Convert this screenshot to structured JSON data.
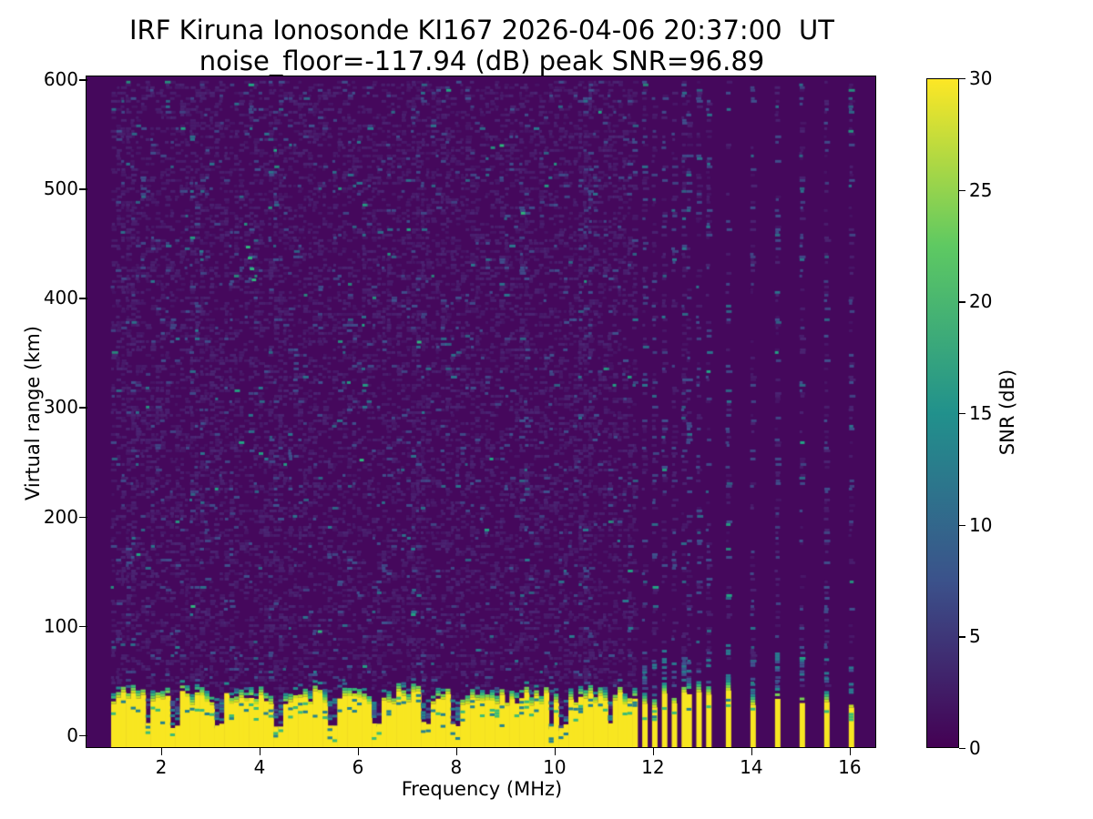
{
  "chart_data": {
    "type": "heatmap",
    "title": "IRF Kiruna Ionosonde KI167 2026-04-06 20:37:00  UT",
    "subtitle": "noise_floor=-117.94 (dB) peak SNR=96.89",
    "station": "KI167",
    "timestamp_ut": "2026-04-06 20:37:00",
    "noise_floor_db": -117.94,
    "peak_snr_db": 96.89,
    "xlabel": "Frequency (MHz)",
    "ylabel": "Virtual range (km)",
    "x_range": [
      0.5,
      16.54
    ],
    "y_range": [
      -12,
      602
    ],
    "x_ticks": [
      2,
      4,
      6,
      8,
      10,
      12,
      14,
      16
    ],
    "y_ticks": [
      0,
      100,
      200,
      300,
      400,
      500,
      600
    ],
    "grid": false,
    "legend": false,
    "colorbar": {
      "label": "SNR (dB)",
      "range": [
        0,
        30
      ],
      "ticks": [
        0,
        5,
        10,
        15,
        20,
        25,
        30
      ],
      "colormap": "viridis"
    },
    "sweep": {
      "start_mhz": 1.0,
      "freq_step_mhz": 0.1,
      "range_gate_km": 2.5,
      "continuous_band_end_mhz": 11.65,
      "dense_stripes_mhz": [
        11.8,
        12.0,
        12.19,
        12.38,
        12.56,
        12.74,
        12.92,
        13.1
      ],
      "isolated_stripes_mhz": [
        13.5,
        14.0,
        14.5,
        15.0,
        15.52,
        16.02
      ],
      "clutter_notch_mhz": [
        1.7,
        2.25,
        3.15,
        4.35,
        5.45,
        6.35,
        7.35,
        7.95,
        9.9,
        10.15,
        11.1
      ],
      "dense_noise_columns_mhz": [
        1.35,
        2.7,
        4.3,
        7.2,
        9.35,
        10.6
      ],
      "ground_clutter_top_km": [
        26,
        40
      ]
    },
    "palette": {
      "background": "#45085c",
      "speckle_faint": "#4c2d78",
      "speckle_blue": "#3f528d",
      "speckle_teal": "#2a788e",
      "speckle_bright": "#22a884",
      "trans_teal": "#26828e",
      "trans_green": "#3dbc74",
      "clutter_yellow": "#f8e621",
      "accent": "#2fb47c",
      "transition": [
        "#c2df23",
        "#75d054",
        "#35b779",
        "#238a8d",
        "#33638d"
      ]
    },
    "accent_streaks": [
      {
        "f": 3.74,
        "km": 447
      },
      {
        "f": 3.78,
        "km": 437
      },
      {
        "f": 3.82,
        "km": 427
      },
      {
        "f": 3.86,
        "km": 417
      },
      {
        "f": 7.22,
        "km": 360
      },
      {
        "f": 9.33,
        "km": 478
      },
      {
        "f": 2.62,
        "km": 118
      },
      {
        "f": 6.05,
        "km": 252
      },
      {
        "f": 8.9,
        "km": 540
      },
      {
        "f": 5.2,
        "km": 95
      }
    ]
  }
}
